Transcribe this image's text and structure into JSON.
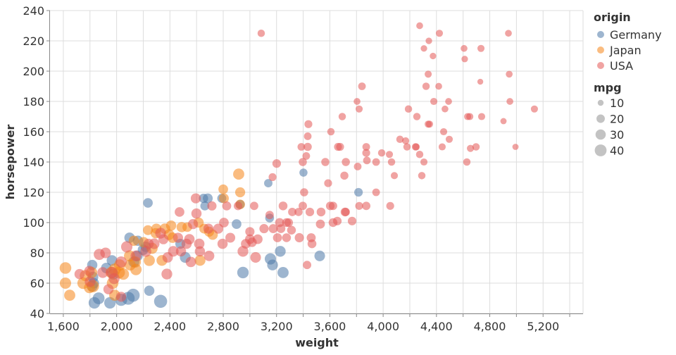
{
  "chart_data": {
    "type": "scatter",
    "xlabel": "weight",
    "ylabel": "horsepower",
    "xlim": [
      1500,
      5500
    ],
    "ylim": [
      40,
      240
    ],
    "x_ticks": [
      "1,600",
      "2,000",
      "2,400",
      "2,800",
      "3,200",
      "3,600",
      "4,000",
      "4,400",
      "4,800",
      "5,200"
    ],
    "x_tick_values": [
      1600,
      2000,
      2400,
      2800,
      3200,
      3600,
      4000,
      4400,
      4800,
      5200
    ],
    "x_grid_step": 200,
    "y_ticks": [
      "40",
      "60",
      "80",
      "100",
      "120",
      "140",
      "160",
      "180",
      "200",
      "220",
      "240"
    ],
    "y_tick_values": [
      40,
      60,
      80,
      100,
      120,
      140,
      160,
      180,
      200,
      220,
      240
    ],
    "grid": true,
    "legend_placement": "right",
    "color_legend": {
      "title": "origin",
      "entries": [
        {
          "label": "Germany",
          "color": "#4c78a8"
        },
        {
          "label": "Japan",
          "color": "#f58518"
        },
        {
          "label": "USA",
          "color": "#e45756"
        }
      ]
    },
    "size_legend": {
      "title": "mpg",
      "entries": [
        {
          "label": "10",
          "value": 10
        },
        {
          "label": "20",
          "value": 20
        },
        {
          "label": "30",
          "value": 30
        },
        {
          "label": "40",
          "value": 40
        }
      ]
    },
    "point_fields": [
      "weight",
      "horsepower",
      "mpg"
    ],
    "series": [
      {
        "name": "Germany",
        "color": "#4c78a8",
        "points": [
          [
            2235,
            113,
            24
          ],
          [
            2097,
            90,
            28
          ],
          [
            2160,
            88,
            27
          ],
          [
            2219,
            84,
            28
          ],
          [
            2198,
            82,
            29
          ],
          [
            2155,
            78,
            30
          ],
          [
            2129,
            74,
            31
          ],
          [
            1965,
            75,
            29
          ],
          [
            1817,
            72,
            27
          ],
          [
            1923,
            70,
            29
          ],
          [
            1975,
            66,
            31
          ],
          [
            1822,
            64,
            30
          ],
          [
            1828,
            60,
            29
          ],
          [
            1817,
            58,
            30
          ],
          [
            1865,
            50,
            36
          ],
          [
            1833,
            47,
            34
          ],
          [
            1950,
            47,
            34
          ],
          [
            2034,
            49,
            38
          ],
          [
            2087,
            50,
            43
          ],
          [
            2124,
            52,
            44
          ],
          [
            2245,
            55,
            27
          ],
          [
            2330,
            48,
            44
          ],
          [
            2515,
            77,
            30
          ],
          [
            2478,
            86,
            26
          ],
          [
            2652,
            116,
            22
          ],
          [
            2662,
            111,
            21
          ],
          [
            2684,
            116,
            25
          ],
          [
            2927,
            112,
            21
          ],
          [
            2900,
            99,
            24
          ],
          [
            3138,
            126,
            18
          ],
          [
            3148,
            103,
            20
          ],
          [
            3154,
            76,
            33
          ],
          [
            3170,
            72,
            30
          ],
          [
            3228,
            81,
            30
          ],
          [
            3249,
            67,
            32
          ],
          [
            3402,
            133,
            17
          ],
          [
            3524,
            78,
            29
          ],
          [
            3815,
            120,
            19
          ],
          [
            2948,
            67,
            34
          ],
          [
            2789,
            116,
            21
          ]
        ]
      },
      {
        "name": "Japan",
        "color": "#f58518",
        "points": [
          [
            1616,
            70,
            35
          ],
          [
            1648,
            52,
            32
          ],
          [
            1616,
            60,
            33
          ],
          [
            1749,
            60,
            35
          ],
          [
            1765,
            65,
            32
          ],
          [
            1796,
            57,
            31
          ],
          [
            1812,
            67,
            33
          ],
          [
            1822,
            58,
            39
          ],
          [
            1986,
            69,
            37
          ],
          [
            1970,
            60,
            35
          ],
          [
            1986,
            52,
            32
          ],
          [
            1960,
            67,
            34
          ],
          [
            2023,
            72,
            33
          ],
          [
            2018,
            67,
            36
          ],
          [
            2050,
            66,
            34
          ],
          [
            2102,
            72,
            31
          ],
          [
            2097,
            78,
            32
          ],
          [
            2140,
            74,
            33
          ],
          [
            2145,
            69,
            33
          ],
          [
            2129,
            88,
            27
          ],
          [
            2203,
            87,
            28
          ],
          [
            2235,
            95,
            25
          ],
          [
            2245,
            75,
            32
          ],
          [
            2293,
            93,
            27
          ],
          [
            2298,
            96,
            26
          ],
          [
            2362,
            96,
            28
          ],
          [
            2409,
            98,
            27
          ],
          [
            2420,
            90,
            28
          ],
          [
            2393,
            92,
            29
          ],
          [
            2488,
            97,
            27
          ],
          [
            2530,
            97,
            24
          ],
          [
            2615,
            100,
            27
          ],
          [
            2626,
            75,
            30
          ],
          [
            2657,
            96,
            25
          ],
          [
            2694,
            94,
            26
          ],
          [
            2800,
            122,
            24
          ],
          [
            2805,
            116,
            25
          ],
          [
            2916,
            132,
            32
          ],
          [
            2927,
            120,
            26
          ],
          [
            2927,
            112,
            24
          ],
          [
            2721,
            92,
            27
          ],
          [
            2340,
            75,
            30
          ],
          [
            2266,
            83,
            32
          ]
        ]
      },
      {
        "name": "USA",
        "color": "#e45756",
        "points": [
          [
            3085,
            225,
            14
          ],
          [
            4274,
            230,
            12
          ],
          [
            4306,
            215,
            11
          ],
          [
            4343,
            220,
            11
          ],
          [
            4374,
            210,
            11
          ],
          [
            4422,
            225,
            13
          ],
          [
            4940,
            225,
            12
          ],
          [
            4607,
            215,
            12
          ],
          [
            4734,
            215,
            13
          ],
          [
            4612,
            208,
            11
          ],
          [
            4729,
            193,
            9
          ],
          [
            4946,
            198,
            12
          ],
          [
            4338,
            198,
            13
          ],
          [
            4322,
            190,
            14
          ],
          [
            4417,
            190,
            12
          ],
          [
            3841,
            190,
            15
          ],
          [
            4951,
            180,
            12
          ],
          [
            5135,
            175,
            13
          ],
          [
            4903,
            167,
            10
          ],
          [
            4993,
            150,
            10
          ],
          [
            4380,
            180,
            13
          ],
          [
            4491,
            180,
            12
          ],
          [
            4464,
            175,
            12
          ],
          [
            4253,
            170,
            14
          ],
          [
            4348,
            165,
            13
          ],
          [
            4338,
            165,
            13
          ],
          [
            4634,
            170,
            13
          ],
          [
            4650,
            170,
            13
          ],
          [
            4739,
            170,
            13
          ],
          [
            4190,
            175,
            14
          ],
          [
            3820,
            175,
            13
          ],
          [
            3693,
            170,
            14
          ],
          [
            3804,
            180,
            12
          ],
          [
            3608,
            160,
            14
          ],
          [
            3439,
            165,
            16
          ],
          [
            3434,
            157,
            15
          ],
          [
            3386,
            150,
            15
          ],
          [
            3434,
            150,
            17
          ],
          [
            3661,
            150,
            16
          ],
          [
            3677,
            150,
            16
          ],
          [
            3873,
            150,
            15
          ],
          [
            4126,
            155,
            14
          ],
          [
            4179,
            150,
            14
          ],
          [
            4243,
            150,
            14
          ],
          [
            4454,
            160,
            13
          ],
          [
            4443,
            150,
            13
          ],
          [
            4496,
            155,
            13
          ],
          [
            4655,
            149,
            13
          ],
          [
            4697,
            150,
            14
          ],
          [
            4628,
            140,
            14
          ],
          [
            4169,
            154,
            13
          ],
          [
            4274,
            145,
            14
          ],
          [
            4248,
            150,
            13
          ],
          [
            4306,
            140,
            13
          ],
          [
            4290,
            131,
            14
          ],
          [
            4084,
            131,
            13
          ],
          [
            4063,
            140,
            14
          ],
          [
            4047,
            145,
            13
          ],
          [
            3989,
            146,
            14
          ],
          [
            3947,
            140,
            15
          ],
          [
            3873,
            146,
            16
          ],
          [
            3809,
            137,
            15
          ],
          [
            3878,
            141,
            15
          ],
          [
            3720,
            140,
            17
          ],
          [
            3709,
            131,
            17
          ],
          [
            3566,
            140,
            17
          ],
          [
            3587,
            126,
            16
          ],
          [
            3423,
            144,
            15
          ],
          [
            3397,
            140,
            17
          ],
          [
            3201,
            139,
            19
          ],
          [
            3170,
            130,
            16
          ],
          [
            3407,
            120,
            17
          ],
          [
            3947,
            120,
            15
          ],
          [
            3820,
            111,
            16
          ],
          [
            3873,
            111,
            18
          ],
          [
            4053,
            111,
            16
          ],
          [
            3397,
            111,
            18
          ],
          [
            3603,
            111,
            19
          ],
          [
            3624,
            111,
            18
          ],
          [
            3714,
            107,
            20
          ],
          [
            3249,
            111,
            20
          ],
          [
            3032,
            111,
            18
          ],
          [
            2911,
            111,
            19
          ],
          [
            3148,
            105,
            18
          ],
          [
            3318,
            107,
            18
          ],
          [
            3365,
            107,
            17
          ],
          [
            3450,
            107,
            19
          ],
          [
            3534,
            107,
            20
          ],
          [
            3719,
            107,
            18
          ],
          [
            3767,
            101,
            19
          ],
          [
            3656,
            101,
            19
          ],
          [
            3529,
            99,
            21
          ],
          [
            3624,
            100,
            20
          ],
          [
            3223,
            100,
            21
          ],
          [
            3275,
            100,
            20
          ],
          [
            3291,
            100,
            19
          ],
          [
            3106,
            96,
            22
          ],
          [
            3175,
            96,
            21
          ],
          [
            3233,
            96,
            20
          ],
          [
            3312,
            95,
            20
          ],
          [
            3371,
            90,
            22
          ],
          [
            3460,
            90,
            21
          ],
          [
            3207,
            90,
            21
          ],
          [
            3275,
            90,
            20
          ],
          [
            3466,
            86,
            20
          ],
          [
            3429,
            72,
            18
          ],
          [
            3000,
            94,
            22
          ],
          [
            3000,
            89,
            24
          ],
          [
            2969,
            86,
            24
          ],
          [
            3016,
            87,
            23
          ],
          [
            3059,
            89,
            24
          ],
          [
            2853,
            90,
            25
          ],
          [
            2763,
            96,
            26
          ],
          [
            2805,
            100,
            24
          ],
          [
            2689,
            96,
            26
          ],
          [
            2826,
            111,
            21
          ],
          [
            2715,
            111,
            22
          ],
          [
            2594,
            116,
            26
          ],
          [
            2599,
            106,
            27
          ],
          [
            2573,
            99,
            26
          ],
          [
            2472,
            107,
            24
          ],
          [
            2525,
            86,
            27
          ],
          [
            2620,
            86,
            28
          ],
          [
            2625,
            81,
            27
          ],
          [
            2557,
            74,
            28
          ],
          [
            2483,
            81,
            27
          ],
          [
            2425,
            81,
            29
          ],
          [
            2383,
            77,
            28
          ],
          [
            2377,
            66,
            30
          ],
          [
            2351,
            89,
            26
          ],
          [
            2282,
            86,
            29
          ],
          [
            2240,
            86,
            27
          ],
          [
            2219,
            81,
            31
          ],
          [
            2145,
            78,
            30
          ],
          [
            2034,
            74,
            32
          ],
          [
            2076,
            84,
            33
          ],
          [
            1965,
            67,
            33
          ],
          [
            1981,
            63,
            31
          ],
          [
            1896,
            67,
            30
          ],
          [
            1870,
            79,
            32
          ],
          [
            1917,
            80,
            29
          ],
          [
            1796,
            68,
            28
          ],
          [
            1722,
            66,
            27
          ],
          [
            1801,
            61,
            30
          ],
          [
            2034,
            51,
            26
          ],
          [
            1939,
            56,
            27
          ],
          [
            2795,
            86,
            27
          ],
          [
            2694,
            78,
            28
          ],
          [
            2948,
            81,
            30
          ],
          [
            2546,
            89,
            28
          ],
          [
            2461,
            90,
            26
          ],
          [
            2330,
            93,
            30
          ],
          [
            3043,
            77,
            29
          ]
        ]
      }
    ]
  }
}
